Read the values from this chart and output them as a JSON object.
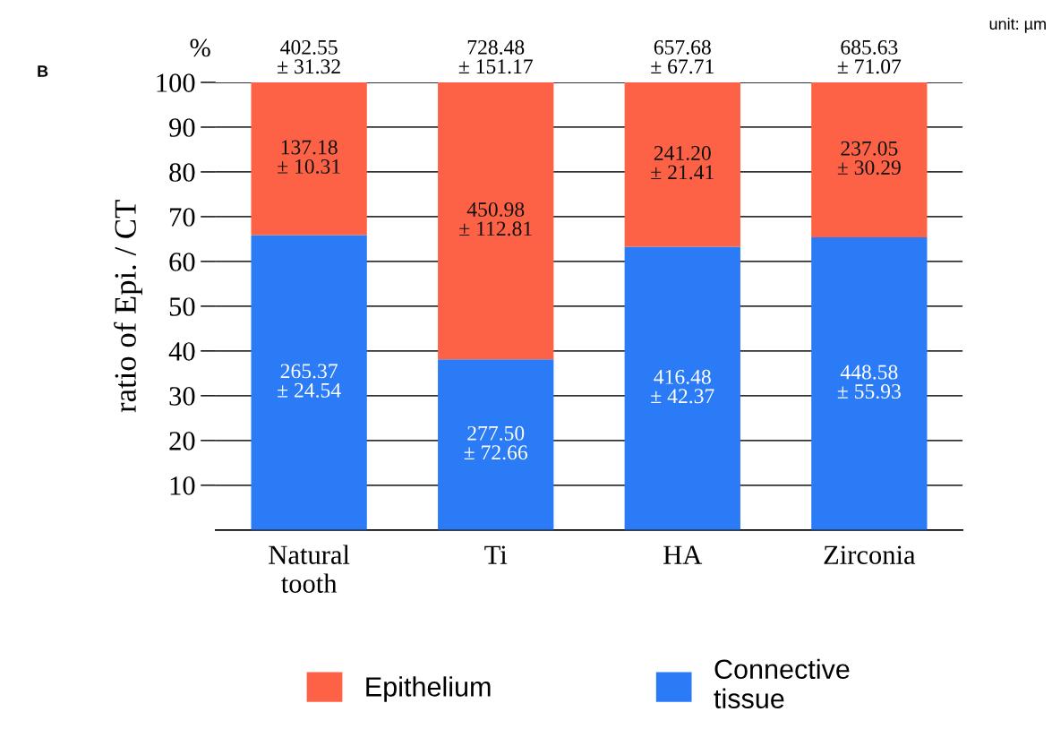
{
  "chart_data": {
    "type": "bar",
    "stacked": true,
    "ylabel": "ratio of Epi. / CT",
    "categories": [
      "Natural\ntooth",
      "Ti",
      "HA",
      "Zirconia"
    ],
    "series": [
      {
        "name": "Connective\ntissue",
        "color": "#2b7bf6",
        "values": [
          65.9,
          38.1,
          63.3,
          65.4
        ]
      },
      {
        "name": "Epithelium",
        "color": "#fe6246",
        "values": [
          34.1,
          61.9,
          36.7,
          34.6
        ]
      }
    ],
    "totals": [
      "402.55\n± 31.32",
      "728.48\n± 151.17",
      "657.68\n± 67.71",
      "685.63\n± 71.07"
    ],
    "ylim": [
      0,
      100
    ],
    "yticks": [
      10,
      20,
      30,
      40,
      50,
      60,
      70,
      80,
      90,
      100
    ],
    "grid": "y",
    "legend": "bottom",
    "annotations": [
      "B",
      "%",
      "unit: µm",
      "265.37\n± 24.54",
      "277.50\n± 72.66",
      "416.48\n± 42.37",
      "448.58\n± 55.93",
      "137.18\n± 10.31",
      "450.98\n± 112.81",
      "241.20\n± 21.41",
      "237.05\n± 30.29"
    ]
  }
}
